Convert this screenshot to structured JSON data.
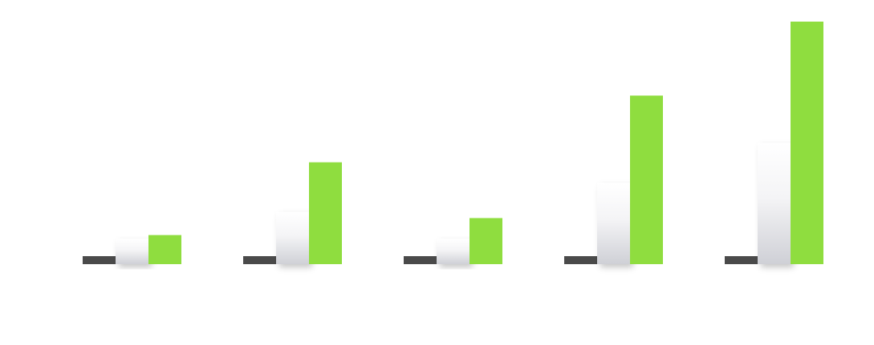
{
  "chart_data": {
    "type": "bar",
    "title": "",
    "xlabel": "",
    "ylabel": "",
    "grid": false,
    "legend": "none",
    "categories": [
      "",
      "",
      "",
      "",
      ""
    ],
    "ylim": [
      0,
      100
    ],
    "series": [
      {
        "color": "#4a4a4a",
        "values": [
          3.3,
          3.3,
          3.3,
          3.3,
          3.3
        ]
      },
      {
        "color": "#e8e8ec",
        "values": [
          10.5,
          21.5,
          10.5,
          33.5,
          50
        ]
      },
      {
        "color": "#8fdd3f",
        "values": [
          12,
          42,
          19,
          69.5,
          100
        ]
      }
    ]
  }
}
